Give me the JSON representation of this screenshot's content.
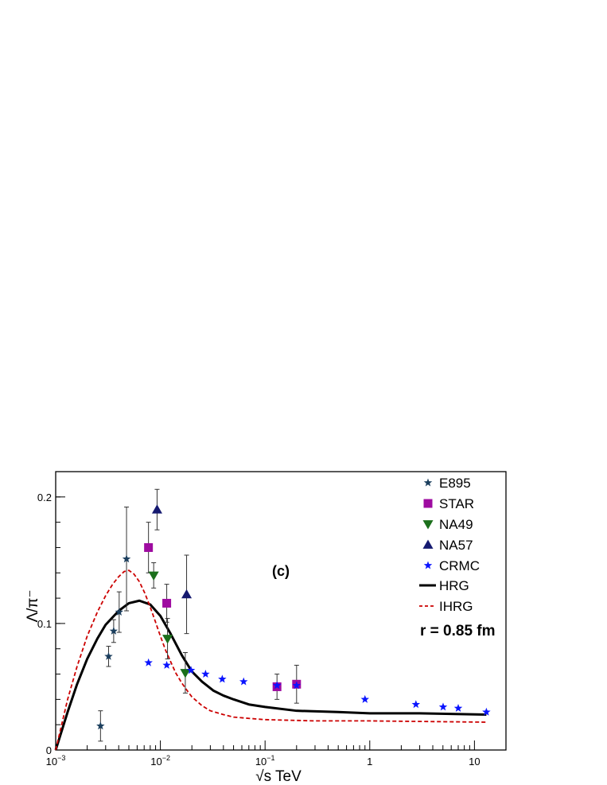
{
  "chart_data": {
    "type": "scatter",
    "panel_label": "(c)",
    "annotation": "r = 0.85 fm",
    "xlabel": "√s TeV",
    "ylabel": "Λ/π⁻",
    "xscale": "log",
    "xlim": [
      0.001,
      20
    ],
    "ylim": [
      0,
      0.22
    ],
    "legend_position": "top-right",
    "x_ticks": [
      {
        "value": 0.001,
        "label": "10",
        "exp": "−3"
      },
      {
        "value": 0.01,
        "label": "10",
        "exp": "−2"
      },
      {
        "value": 0.1,
        "label": "10",
        "exp": "−1"
      },
      {
        "value": 1,
        "label": "1",
        "exp": ""
      },
      {
        "value": 10,
        "label": "10",
        "exp": ""
      }
    ],
    "y_ticks": [
      {
        "value": 0,
        "label": "0"
      },
      {
        "value": 0.1,
        "label": "0.1"
      },
      {
        "value": 0.2,
        "label": "0.2"
      }
    ],
    "series": [
      {
        "name": "E895",
        "marker": "star",
        "color": "#1c3f5e",
        "points": [
          {
            "x": 0.00268,
            "y": 0.019,
            "err": 0.012
          },
          {
            "x": 0.0032,
            "y": 0.074,
            "err": 0.008
          },
          {
            "x": 0.00358,
            "y": 0.094,
            "err": 0.009
          },
          {
            "x": 0.00404,
            "y": 0.109,
            "err": 0.016
          },
          {
            "x": 0.00475,
            "y": 0.151,
            "err": 0.041
          }
        ]
      },
      {
        "name": "STAR",
        "marker": "square",
        "color": "#9e0ba0",
        "points": [
          {
            "x": 0.0077,
            "y": 0.16,
            "err": 0.02
          },
          {
            "x": 0.0115,
            "y": 0.116,
            "err": 0.015
          },
          {
            "x": 0.13,
            "y": 0.05,
            "err": 0.01
          },
          {
            "x": 0.2,
            "y": 0.052,
            "err": 0.015
          }
        ]
      },
      {
        "name": "NA49",
        "marker": "triangle-down",
        "color": "#1b6f1b",
        "points": [
          {
            "x": 0.00863,
            "y": 0.138,
            "err": 0.01
          },
          {
            "x": 0.0117,
            "y": 0.088,
            "err": 0.016
          },
          {
            "x": 0.0173,
            "y": 0.061,
            "err": 0.016
          }
        ]
      },
      {
        "name": "NA57",
        "marker": "triangle-up",
        "color": "#151970",
        "points": [
          {
            "x": 0.0093,
            "y": 0.19,
            "err": 0.016
          },
          {
            "x": 0.0178,
            "y": 0.123,
            "err": 0.031
          }
        ]
      },
      {
        "name": "CRMC",
        "marker": "star",
        "color": "#0a14ff",
        "points": [
          {
            "x": 0.0077,
            "y": 0.069
          },
          {
            "x": 0.0115,
            "y": 0.067
          },
          {
            "x": 0.0196,
            "y": 0.063
          },
          {
            "x": 0.027,
            "y": 0.06
          },
          {
            "x": 0.039,
            "y": 0.056
          },
          {
            "x": 0.0624,
            "y": 0.054
          },
          {
            "x": 0.13,
            "y": 0.051
          },
          {
            "x": 0.2,
            "y": 0.051
          },
          {
            "x": 0.9,
            "y": 0.04
          },
          {
            "x": 2.76,
            "y": 0.036
          },
          {
            "x": 5.02,
            "y": 0.034
          },
          {
            "x": 7,
            "y": 0.033
          },
          {
            "x": 13,
            "y": 0.03
          }
        ]
      },
      {
        "name": "HRG",
        "line": "solid",
        "color": "#000000",
        "points": [
          {
            "x": 0.001,
            "y": 0.0
          },
          {
            "x": 0.0013,
            "y": 0.03
          },
          {
            "x": 0.0016,
            "y": 0.052
          },
          {
            "x": 0.002,
            "y": 0.072
          },
          {
            "x": 0.0025,
            "y": 0.088
          },
          {
            "x": 0.003,
            "y": 0.099
          },
          {
            "x": 0.004,
            "y": 0.11
          },
          {
            "x": 0.005,
            "y": 0.116
          },
          {
            "x": 0.0063,
            "y": 0.118
          },
          {
            "x": 0.008,
            "y": 0.115
          },
          {
            "x": 0.01,
            "y": 0.106
          },
          {
            "x": 0.0125,
            "y": 0.092
          },
          {
            "x": 0.016,
            "y": 0.075
          },
          {
            "x": 0.02,
            "y": 0.062
          },
          {
            "x": 0.025,
            "y": 0.054
          },
          {
            "x": 0.032,
            "y": 0.047
          },
          {
            "x": 0.04,
            "y": 0.043
          },
          {
            "x": 0.05,
            "y": 0.04
          },
          {
            "x": 0.07,
            "y": 0.036
          },
          {
            "x": 0.1,
            "y": 0.034
          },
          {
            "x": 0.2,
            "y": 0.031
          },
          {
            "x": 0.5,
            "y": 0.03
          },
          {
            "x": 1,
            "y": 0.029
          },
          {
            "x": 3,
            "y": 0.029
          },
          {
            "x": 13,
            "y": 0.028
          }
        ]
      },
      {
        "name": "IHRG",
        "line": "dashed",
        "color": "#cc0000",
        "points": [
          {
            "x": 0.001,
            "y": 0.0
          },
          {
            "x": 0.0013,
            "y": 0.04
          },
          {
            "x": 0.0016,
            "y": 0.066
          },
          {
            "x": 0.002,
            "y": 0.09
          },
          {
            "x": 0.0025,
            "y": 0.109
          },
          {
            "x": 0.003,
            "y": 0.122
          },
          {
            "x": 0.0035,
            "y": 0.131
          },
          {
            "x": 0.004,
            "y": 0.137
          },
          {
            "x": 0.0045,
            "y": 0.141
          },
          {
            "x": 0.005,
            "y": 0.142
          },
          {
            "x": 0.0056,
            "y": 0.139
          },
          {
            "x": 0.0063,
            "y": 0.133
          },
          {
            "x": 0.0071,
            "y": 0.124
          },
          {
            "x": 0.008,
            "y": 0.113
          },
          {
            "x": 0.009,
            "y": 0.101
          },
          {
            "x": 0.01,
            "y": 0.09
          },
          {
            "x": 0.0112,
            "y": 0.079
          },
          {
            "x": 0.0125,
            "y": 0.07
          },
          {
            "x": 0.014,
            "y": 0.061
          },
          {
            "x": 0.016,
            "y": 0.053
          },
          {
            "x": 0.018,
            "y": 0.047
          },
          {
            "x": 0.02,
            "y": 0.042
          },
          {
            "x": 0.025,
            "y": 0.035
          },
          {
            "x": 0.03,
            "y": 0.031
          },
          {
            "x": 0.04,
            "y": 0.028
          },
          {
            "x": 0.05,
            "y": 0.026
          },
          {
            "x": 0.07,
            "y": 0.025
          },
          {
            "x": 0.1,
            "y": 0.024
          },
          {
            "x": 0.3,
            "y": 0.023
          },
          {
            "x": 1,
            "y": 0.023
          },
          {
            "x": 13,
            "y": 0.022
          }
        ]
      }
    ]
  }
}
